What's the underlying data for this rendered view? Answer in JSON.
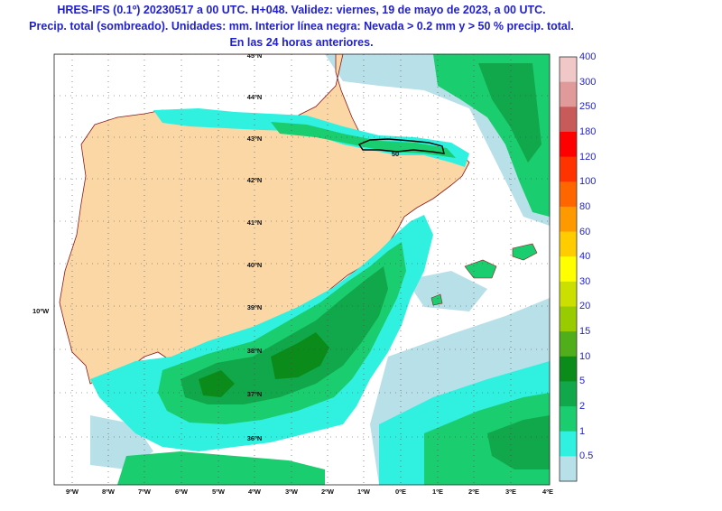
{
  "title": {
    "line1": "HRES-IFS (0.1º) 20230517 a 00 UTC. H+048. Validez: viernes, 19 de mayo de 2023, a 00 UTC.",
    "line2": "Precip. total (sombreado). Unidades: mm. Interior línea negra: Nevada > 0.2 mm y > 50 % precip. total.",
    "line3": "En las 24 horas anteriores."
  },
  "map": {
    "lat_labels": [
      "45ºN",
      "44ºN",
      "43ºN",
      "42ºN",
      "41ºN",
      "40ºN",
      "39ºN",
      "38ºN",
      "37ºN",
      "36ºN"
    ],
    "lon_labels": [
      "9ºW",
      "8ºW",
      "7ºW",
      "6ºW",
      "5ºW",
      "4ºW",
      "3ºW",
      "2ºW",
      "1ºW",
      "0ºE",
      "1ºE",
      "2ºE",
      "3ºE",
      "4ºE"
    ],
    "side_label": "10ºW",
    "snow_contour_label": "50",
    "colors": {
      "land_dry": "#fbd7a6",
      "sea": "#ffffff",
      "border": "#8a1a1a",
      "graticule": "#444444",
      "snow_line": "#000000"
    }
  },
  "legend": {
    "items": [
      {
        "label": "400",
        "color": "#f0c8c8"
      },
      {
        "label": "300",
        "color": "#e09a9a"
      },
      {
        "label": "250",
        "color": "#c85a5a"
      },
      {
        "label": "180",
        "color": "#ff0000"
      },
      {
        "label": "120",
        "color": "#ff3300"
      },
      {
        "label": "100",
        "color": "#ff6600"
      },
      {
        "label": "80",
        "color": "#ff9900"
      },
      {
        "label": "60",
        "color": "#ffcc00"
      },
      {
        "label": "40",
        "color": "#ffff00"
      },
      {
        "label": "30",
        "color": "#cce000"
      },
      {
        "label": "20",
        "color": "#99cc00"
      },
      {
        "label": "15",
        "color": "#4fae1a"
      },
      {
        "label": "10",
        "color": "#0b8c1a"
      },
      {
        "label": "5",
        "color": "#10a84a"
      },
      {
        "label": "2",
        "color": "#1acd6e"
      },
      {
        "label": "1",
        "color": "#30f0e0"
      },
      {
        "label": "0.5",
        "color": "#b8e0e8"
      }
    ]
  }
}
